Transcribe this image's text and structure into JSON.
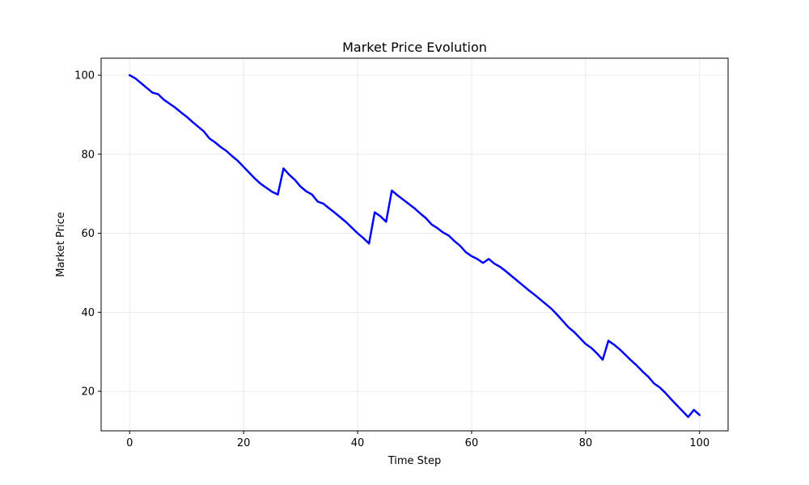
{
  "chart_data": {
    "type": "line",
    "title": "Market Price Evolution",
    "xlabel": "Time Step",
    "ylabel": "Market Price",
    "xlim": [
      -5,
      105
    ],
    "ylim": [
      10,
      104.3
    ],
    "xticks": [
      0,
      20,
      40,
      60,
      80,
      100
    ],
    "yticks": [
      20,
      40,
      60,
      80,
      100
    ],
    "grid": true,
    "series": [
      {
        "color": "#0000ff",
        "x": [
          0,
          1,
          2,
          3,
          4,
          5,
          6,
          7,
          8,
          9,
          10,
          11,
          12,
          13,
          14,
          15,
          16,
          17,
          18,
          19,
          20,
          21,
          22,
          23,
          24,
          25,
          26,
          27,
          28,
          29,
          30,
          31,
          32,
          33,
          34,
          35,
          36,
          37,
          38,
          39,
          40,
          41,
          42,
          43,
          44,
          45,
          46,
          47,
          48,
          49,
          50,
          51,
          52,
          53,
          54,
          55,
          56,
          57,
          58,
          59,
          60,
          61,
          62,
          63,
          64,
          65,
          66,
          67,
          68,
          69,
          70,
          71,
          72,
          73,
          74,
          75,
          76,
          77,
          78,
          79,
          80,
          81,
          82,
          83,
          84,
          85,
          86,
          87,
          88,
          89,
          90,
          91,
          92,
          93,
          94,
          95,
          96,
          97,
          98,
          99,
          100
        ],
        "y": [
          100.0,
          99.2,
          98.0,
          96.8,
          95.6,
          95.2,
          93.8,
          92.8,
          91.8,
          90.6,
          89.5,
          88.2,
          87.0,
          85.8,
          84.0,
          83.0,
          81.8,
          80.8,
          79.5,
          78.3,
          76.8,
          75.3,
          73.8,
          72.5,
          71.5,
          70.5,
          69.8,
          76.4,
          74.8,
          73.5,
          71.8,
          70.6,
          69.8,
          68.0,
          67.5,
          66.3,
          65.2,
          64.0,
          62.8,
          61.4,
          60.0,
          58.8,
          57.4,
          65.3,
          64.3,
          62.9,
          70.8,
          69.6,
          68.5,
          67.4,
          66.3,
          65.0,
          63.8,
          62.2,
          61.3,
          60.2,
          59.4,
          58.0,
          56.8,
          55.2,
          54.2,
          53.5,
          52.5,
          53.5,
          52.3,
          51.5,
          50.4,
          49.2,
          48.0,
          46.8,
          45.6,
          44.5,
          43.3,
          42.1,
          40.9,
          39.4,
          37.8,
          36.2,
          35.0,
          33.5,
          32.0,
          31.0,
          29.6,
          28.0,
          32.8,
          31.8,
          30.6,
          29.2,
          27.8,
          26.5,
          25.0,
          23.7,
          22.0,
          21.0,
          19.6,
          18.0,
          16.5,
          15.0,
          13.5,
          15.3,
          14.0
        ]
      }
    ]
  }
}
